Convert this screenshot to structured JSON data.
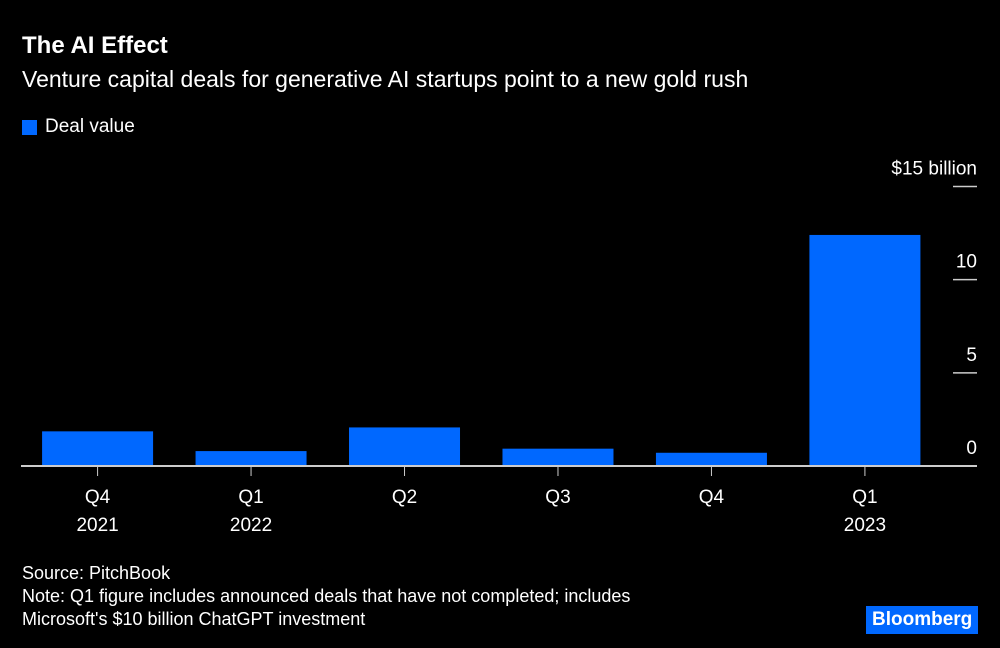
{
  "chart_data": {
    "type": "bar",
    "title": "The AI Effect",
    "subtitle": "Venture capital deals for generative AI startups point to a new gold rush",
    "legend": [
      {
        "name": "Deal value",
        "color": "#0068ff"
      }
    ],
    "legend_placement": "top-left",
    "categories": [
      [
        "Q4",
        "2021"
      ],
      [
        "Q1",
        "2022"
      ],
      [
        "Q2",
        ""
      ],
      [
        "Q3",
        ""
      ],
      [
        "Q4",
        ""
      ],
      [
        "Q1",
        "2023"
      ]
    ],
    "series": [
      {
        "name": "Deal value",
        "values": [
          1.86,
          0.8,
          2.07,
          0.93,
          0.71,
          12.4
        ]
      }
    ],
    "ylim": [
      0,
      15
    ],
    "yticks": [
      0,
      5,
      10,
      15
    ],
    "ytick_labels": [
      "0",
      "5",
      "10",
      "$15 billion"
    ],
    "y_axis_side": "right",
    "grid": false
  },
  "footer": {
    "source": "Source: PitchBook",
    "note_line1": "Note: Q1 figure includes announced deals that have not completed; includes",
    "note_line2": "Microsoft's $10 billion ChatGPT investment",
    "logo": "Bloomberg"
  }
}
